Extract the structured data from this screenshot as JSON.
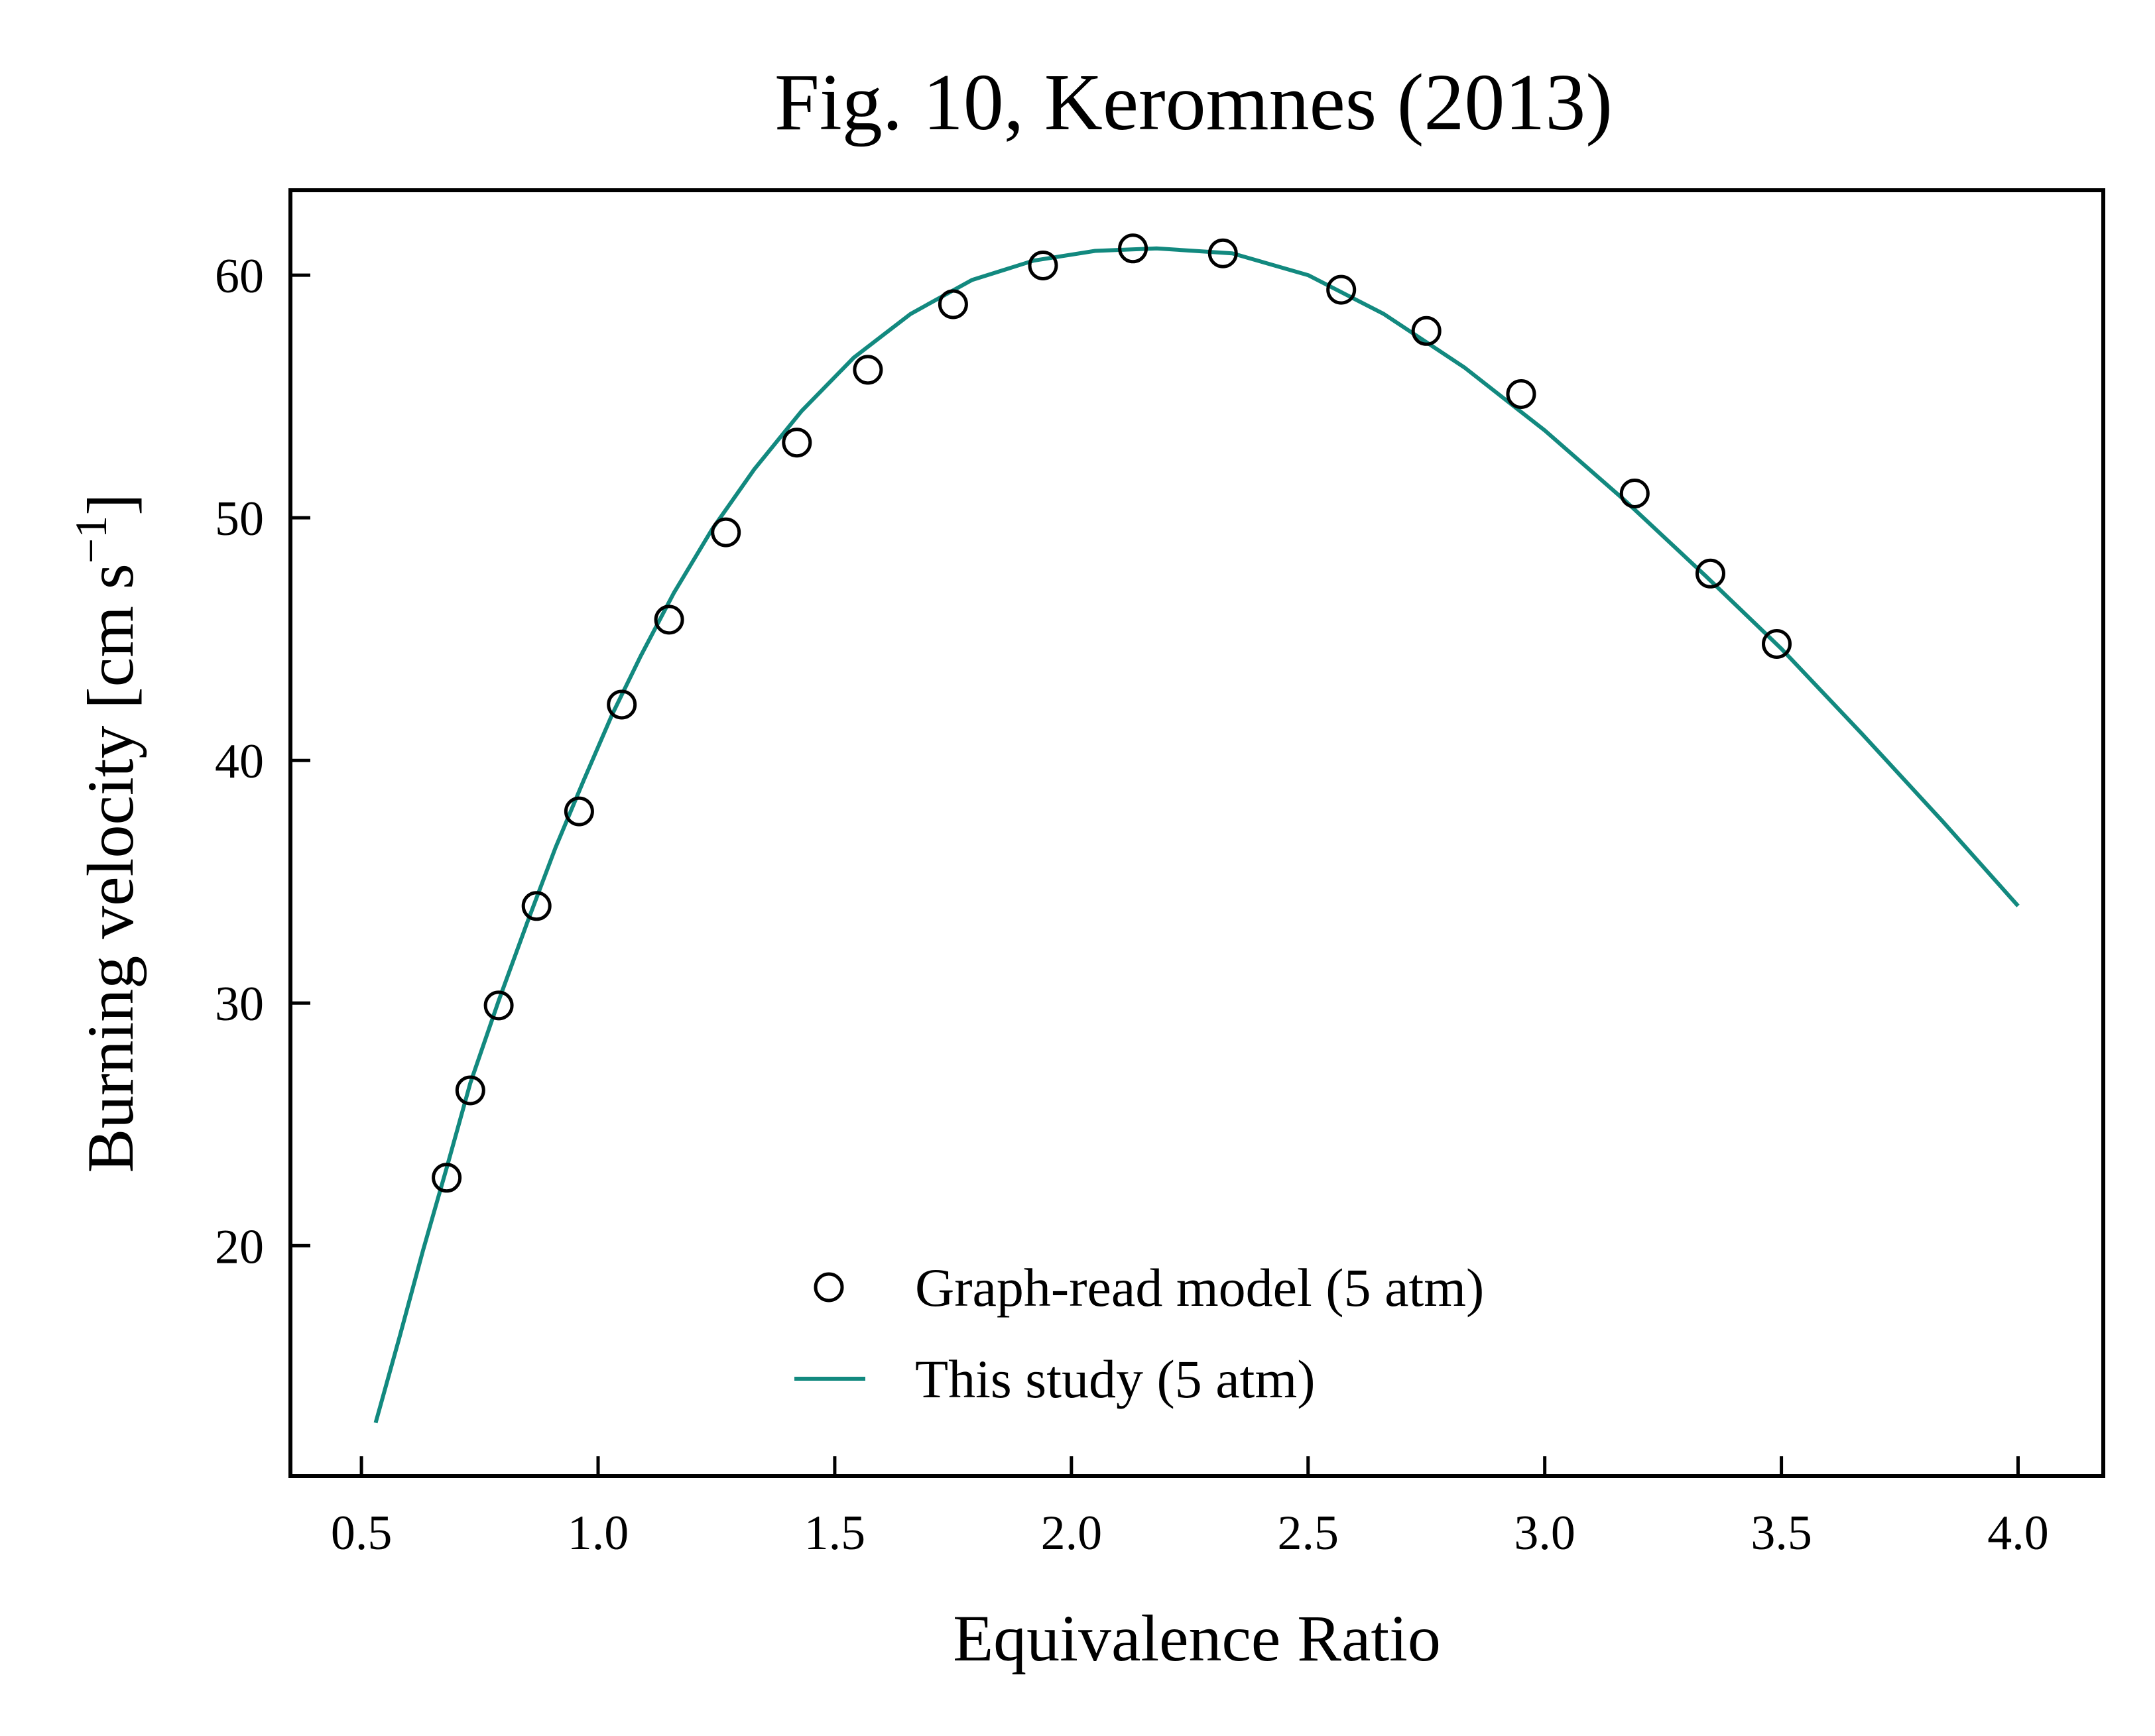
{
  "chart_data": {
    "type": "line",
    "title": "Fig. 10, Keromnes (2013)",
    "xlabel": "Equivalence Ratio",
    "ylabel": "Burning velocity [cm s",
    "ylabel_sup": "−1",
    "ylabel_close": "]",
    "xlim": [
      0.35,
      4.18
    ],
    "ylim": [
      10.5,
      63.5
    ],
    "xticks": [
      0.5,
      1.0,
      1.5,
      2.0,
      2.5,
      3.0,
      3.5,
      4.0
    ],
    "xtick_labels": [
      "0.5",
      "1.0",
      "1.5",
      "2.0",
      "2.5",
      "3.0",
      "3.5",
      "4.0"
    ],
    "yticks": [
      20,
      30,
      40,
      50,
      60
    ],
    "ytick_labels": [
      "20",
      "30",
      "40",
      "50",
      "60"
    ],
    "grid": false,
    "legend_position": "bottom-center",
    "colors": {
      "line": "#12897f",
      "markers": "#000000",
      "axes": "#000000"
    },
    "series": [
      {
        "name": "Graph-read model (5 atm)",
        "kind": "scatter",
        "marker": "open-circle",
        "x": [
          0.68,
          0.73,
          0.79,
          0.87,
          0.96,
          1.05,
          1.15,
          1.27,
          1.42,
          1.57,
          1.75,
          1.94,
          2.13,
          2.32,
          2.57,
          2.75,
          2.95,
          3.19,
          3.35,
          3.49
        ],
        "y": [
          22.8,
          26.4,
          29.9,
          34.0,
          37.9,
          42.3,
          45.8,
          49.4,
          53.1,
          56.1,
          58.8,
          60.4,
          61.1,
          60.9,
          59.4,
          57.7,
          55.1,
          51.0,
          47.7,
          44.8
        ]
      },
      {
        "name": "This study (5 atm)",
        "kind": "line",
        "x": [
          0.53,
          0.58,
          0.63,
          0.68,
          0.73,
          0.79,
          0.85,
          0.91,
          0.97,
          1.03,
          1.09,
          1.16,
          1.24,
          1.33,
          1.43,
          1.54,
          1.66,
          1.79,
          1.92,
          2.05,
          2.18,
          2.34,
          2.5,
          2.66,
          2.83,
          3.0,
          3.17,
          3.34,
          3.5,
          3.67,
          3.84,
          4.0
        ],
        "y": [
          12.7,
          16.2,
          19.8,
          23.2,
          26.7,
          30.1,
          33.3,
          36.4,
          39.2,
          41.9,
          44.3,
          46.9,
          49.5,
          52.0,
          54.4,
          56.6,
          58.4,
          59.8,
          60.6,
          61.0,
          61.1,
          60.9,
          60.0,
          58.4,
          56.2,
          53.6,
          50.7,
          47.6,
          44.6,
          41.1,
          37.5,
          34.0
        ]
      }
    ]
  }
}
